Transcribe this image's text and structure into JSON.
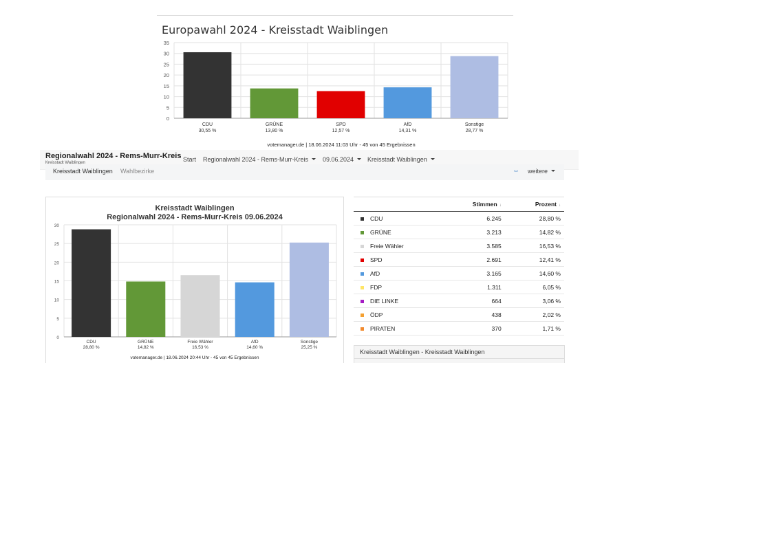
{
  "chart_data": [
    {
      "type": "bar",
      "title": "Europawahl 2024 - Kreisstadt Waiblingen",
      "categories": [
        "CDU",
        "GRÜNE",
        "SPD",
        "AfD",
        "Sonstige"
      ],
      "category_labels": [
        "30,55 %",
        "13,80 %",
        "12,57 %",
        "14,31 %",
        "28,77 %"
      ],
      "values": [
        30.55,
        13.8,
        12.57,
        14.31,
        28.77
      ],
      "colors": [
        "#333333",
        "#629837",
        "#e10000",
        "#5399de",
        "#aebde3"
      ],
      "ylim": [
        0,
        35
      ],
      "yticks": [
        "0",
        "5",
        "10",
        "15",
        "20",
        "25",
        "30",
        "35"
      ],
      "grid": true,
      "footer": "votemanager.de | 18.06.2024 11:03 Uhr - 45 von 45 Ergebnissen"
    },
    {
      "type": "bar",
      "title": "Kreisstadt Waiblingen",
      "subtitle": "Regionalwahl 2024 - Rems-Murr-Kreis 09.06.2024",
      "categories": [
        "CDU",
        "GRÜNE",
        "Freie Wähler",
        "AfD",
        "Sonstige"
      ],
      "category_labels": [
        "28,80 %",
        "14,82 %",
        "16,53 %",
        "14,60 %",
        "25,25 %"
      ],
      "values": [
        28.8,
        14.82,
        16.53,
        14.6,
        25.25
      ],
      "colors": [
        "#333333",
        "#629837",
        "#d6d6d6",
        "#5399de",
        "#aebde3"
      ],
      "ylim": [
        0,
        30
      ],
      "yticks": [
        "0",
        "5",
        "10",
        "15",
        "20",
        "25",
        "30"
      ],
      "grid": true,
      "footer": "votemanager.de | 18.06.2024 20:44 Uhr - 45 von 45 Ergebnissen"
    }
  ],
  "navbar": {
    "brand_title": "Regionalwahl 2024 - Rems-Murr-Kreis",
    "brand_subtitle": "Kreisstadt Waiblingen",
    "items": [
      "Start",
      "Regionalwahl 2024 - Rems-Murr-Kreis",
      "09.06.2024",
      "Kreisstadt Waiblingen"
    ]
  },
  "subnav": {
    "tabs": [
      "Kreisstadt Waiblingen",
      "Wahlbezirke"
    ],
    "more_label": "weitere",
    "link_icon": "link-icon"
  },
  "table": {
    "headers": [
      "",
      "",
      "Stimmen",
      "Prozent"
    ],
    "sort_glyph": "↓",
    "rows": [
      {
        "party": "CDU",
        "votes": "6.245",
        "percent": "28,80 %",
        "color": "#333333"
      },
      {
        "party": "GRÜNE",
        "votes": "3.213",
        "percent": "14,82 %",
        "color": "#629837"
      },
      {
        "party": "Freie Wähler",
        "votes": "3.585",
        "percent": "16,53 %",
        "color": "#d6d6d6"
      },
      {
        "party": "SPD",
        "votes": "2.691",
        "percent": "12,41 %",
        "color": "#e10000"
      },
      {
        "party": "AfD",
        "votes": "3.165",
        "percent": "14,60 %",
        "color": "#5399de"
      },
      {
        "party": "FDP",
        "votes": "1.311",
        "percent": "6,05 %",
        "color": "#ffe566"
      },
      {
        "party": "DIE LINKE",
        "votes": "664",
        "percent": "3,06 %",
        "color": "#a51bc4"
      },
      {
        "party": "ÖDP",
        "votes": "438",
        "percent": "2,02 %",
        "color": "#f5a030"
      },
      {
        "party": "PIRATEN",
        "votes": "370",
        "percent": "1,71 %",
        "color": "#f28a2e"
      }
    ]
  },
  "bottom_panel": {
    "title": "Kreisstadt Waiblingen - Kreisstadt Waiblingen"
  }
}
